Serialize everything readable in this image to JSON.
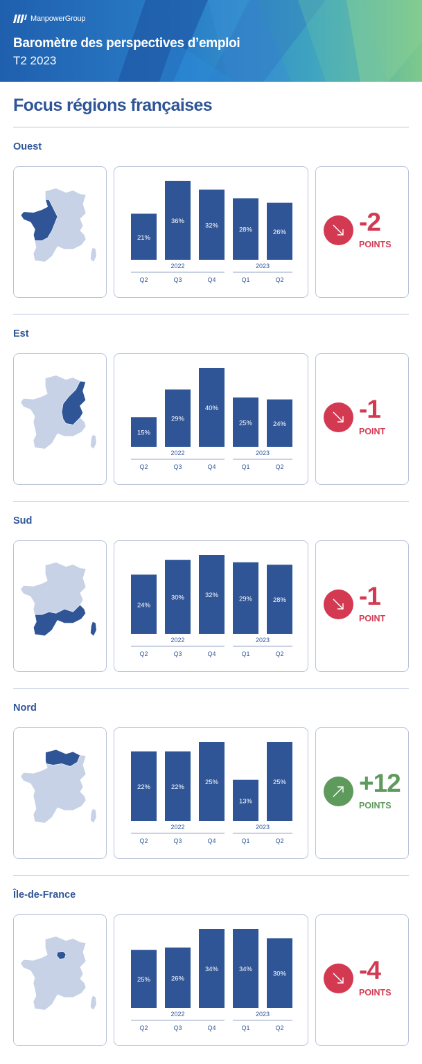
{
  "header": {
    "brand": "ManpowerGroup",
    "title": "Baromètre des perspectives d’emploi",
    "subtitle": "T2 2023"
  },
  "page_title": "Focus régions françaises",
  "colors": {
    "bar": "#2f5597",
    "text": "#2f5597",
    "map_base": "#c7d2e6",
    "map_highlight": "#2f5597",
    "decrease": "#d33a52",
    "increase": "#5e9a5c"
  },
  "regions": [
    {
      "name": "Ouest",
      "delta": {
        "value": "-2",
        "unit": "POINTS",
        "trend": "down",
        "arrow_icon": "arrow-down-right-icon"
      },
      "chart": {
        "type": "bar",
        "categories": [
          "Q2",
          "Q3",
          "Q4",
          "Q1",
          "Q2"
        ],
        "years": [
          {
            "label": "2022"
          },
          {
            "label": "2023"
          }
        ],
        "values": [
          21,
          36,
          32,
          28,
          26
        ],
        "labels": [
          "21%",
          "36%",
          "32%",
          "28%",
          "26%"
        ]
      }
    },
    {
      "name": "Est",
      "delta": {
        "value": "-1",
        "unit": "POINT",
        "trend": "down",
        "arrow_icon": "arrow-down-right-icon"
      },
      "chart": {
        "type": "bar",
        "categories": [
          "Q2",
          "Q3",
          "Q4",
          "Q1",
          "Q2"
        ],
        "years": [
          {
            "label": "2022"
          },
          {
            "label": "2023"
          }
        ],
        "values": [
          15,
          29,
          40,
          25,
          24
        ],
        "labels": [
          "15%",
          "29%",
          "40%",
          "25%",
          "24%"
        ]
      }
    },
    {
      "name": "Sud",
      "delta": {
        "value": "-1",
        "unit": "POINT",
        "trend": "down",
        "arrow_icon": "arrow-down-right-icon"
      },
      "chart": {
        "type": "bar",
        "categories": [
          "Q2",
          "Q3",
          "Q4",
          "Q1",
          "Q2"
        ],
        "years": [
          {
            "label": "2022"
          },
          {
            "label": "2023"
          }
        ],
        "values": [
          24,
          30,
          32,
          29,
          28
        ],
        "labels": [
          "24%",
          "30%",
          "32%",
          "29%",
          "28%"
        ]
      }
    },
    {
      "name": "Nord",
      "delta": {
        "value": "+12",
        "unit": "POINTS",
        "trend": "up",
        "arrow_icon": "arrow-up-right-icon"
      },
      "chart": {
        "type": "bar",
        "categories": [
          "Q2",
          "Q3",
          "Q4",
          "Q1",
          "Q2"
        ],
        "years": [
          {
            "label": "2022"
          },
          {
            "label": "2023"
          }
        ],
        "values": [
          22,
          22,
          25,
          13,
          25
        ],
        "labels": [
          "22%",
          "22%",
          "25%",
          "13%",
          "25%"
        ]
      }
    },
    {
      "name": "Île-de-France",
      "delta": {
        "value": "-4",
        "unit": "POINTS",
        "trend": "down",
        "arrow_icon": "arrow-down-right-icon"
      },
      "chart": {
        "type": "bar",
        "categories": [
          "Q2",
          "Q3",
          "Q4",
          "Q1",
          "Q2"
        ],
        "years": [
          {
            "label": "2022"
          },
          {
            "label": "2023"
          }
        ],
        "values": [
          25,
          26,
          34,
          34,
          30
        ],
        "labels": [
          "25%",
          "26%",
          "34%",
          "34%",
          "30%"
        ]
      }
    }
  ],
  "chart_data": [
    {
      "type": "bar",
      "title": "Ouest",
      "categories": [
        "2022 Q2",
        "2022 Q3",
        "2022 Q4",
        "2023 Q1",
        "2023 Q2"
      ],
      "values": [
        21,
        36,
        32,
        28,
        26
      ],
      "ylim": [
        0,
        40
      ]
    },
    {
      "type": "bar",
      "title": "Est",
      "categories": [
        "2022 Q2",
        "2022 Q3",
        "2022 Q4",
        "2023 Q1",
        "2023 Q2"
      ],
      "values": [
        15,
        29,
        40,
        25,
        24
      ],
      "ylim": [
        0,
        40
      ]
    },
    {
      "type": "bar",
      "title": "Sud",
      "categories": [
        "2022 Q2",
        "2022 Q3",
        "2022 Q4",
        "2023 Q1",
        "2023 Q2"
      ],
      "values": [
        24,
        30,
        32,
        29,
        28
      ],
      "ylim": [
        0,
        32
      ]
    },
    {
      "type": "bar",
      "title": "Nord",
      "categories": [
        "2022 Q2",
        "2022 Q3",
        "2022 Q4",
        "2023 Q1",
        "2023 Q2"
      ],
      "values": [
        22,
        22,
        25,
        13,
        25
      ],
      "ylim": [
        0,
        25
      ]
    },
    {
      "type": "bar",
      "title": "Île-de-France",
      "categories": [
        "2022 Q2",
        "2022 Q3",
        "2022 Q4",
        "2023 Q1",
        "2023 Q2"
      ],
      "values": [
        25,
        26,
        34,
        34,
        30
      ],
      "ylim": [
        0,
        34
      ]
    }
  ]
}
